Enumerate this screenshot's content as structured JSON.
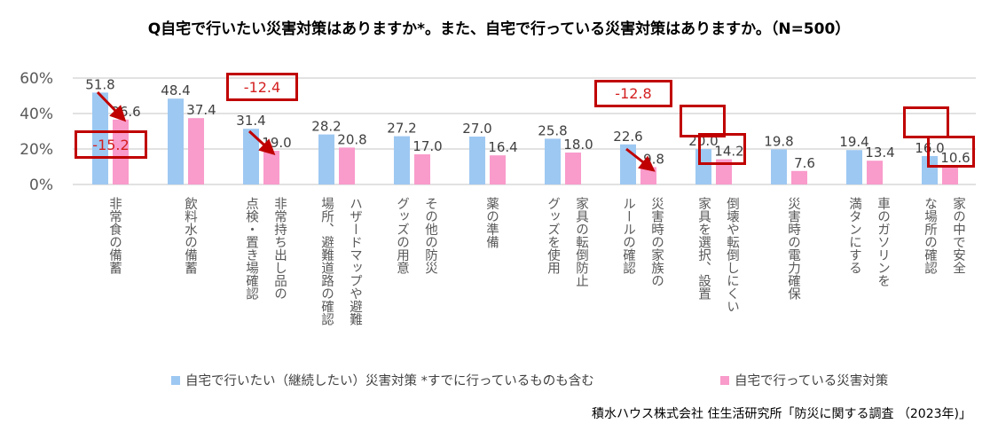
{
  "chart_data": {
    "type": "bar",
    "title": "Q自宅で行いたい災害対策はありますか*。また、自宅で行っている災害対策はありますか。（N=500）",
    "categories": [
      "非常食の備蓄",
      "飲料水の備蓄",
      "非常持ち出し品の\n点検・置き場確認",
      "ハザードマップや避難\n場所、避難道路の確認",
      "その他の防災\nグッズの用意",
      "薬の準備",
      "家具の転倒防止\nグッズを使用",
      "災害時の家族の\nルールの確認",
      "倒壊や転倒しにくい\n家具を選択、設置",
      "災害時の電力確保",
      "車のガソリンを\n満タンにする",
      "家の中で安全\nな場所の確認"
    ],
    "series": [
      {
        "name": "自宅で行いたい（継続したい）災害対策 *すでに行っているものも含む",
        "color": "#9DC8F2",
        "values": [
          51.8,
          48.4,
          31.4,
          28.2,
          27.2,
          27.0,
          25.8,
          22.6,
          20.0,
          19.8,
          19.4,
          16.0
        ]
      },
      {
        "name": "自宅で行っている災害対策",
        "color": "#F99BCB",
        "values": [
          36.6,
          37.4,
          19.0,
          20.8,
          17.0,
          16.4,
          18.0,
          9.8,
          14.2,
          7.6,
          13.4,
          10.6
        ]
      }
    ],
    "yticks": [
      "0%",
      "20%",
      "40%",
      "60%"
    ],
    "ylim": [
      0,
      60
    ],
    "grid": true,
    "legend": "bottom",
    "annotations": [
      {
        "category": "非常食の備蓄",
        "text": "-15.2"
      },
      {
        "category": "非常持ち出し品の点検・置き場確認",
        "text": "-12.4"
      },
      {
        "category": "災害時の家族のルールの確認",
        "text": "-12.8"
      }
    ],
    "highlighted_labels": [
      "20.0",
      "14.2",
      "16.0",
      "10.6"
    ],
    "annotation_color": "#C00000",
    "annotation_text_color": "#D42020",
    "source": "積水ハウス株式会社 住生活研究所「防災に関する調査 （2023年)」"
  }
}
